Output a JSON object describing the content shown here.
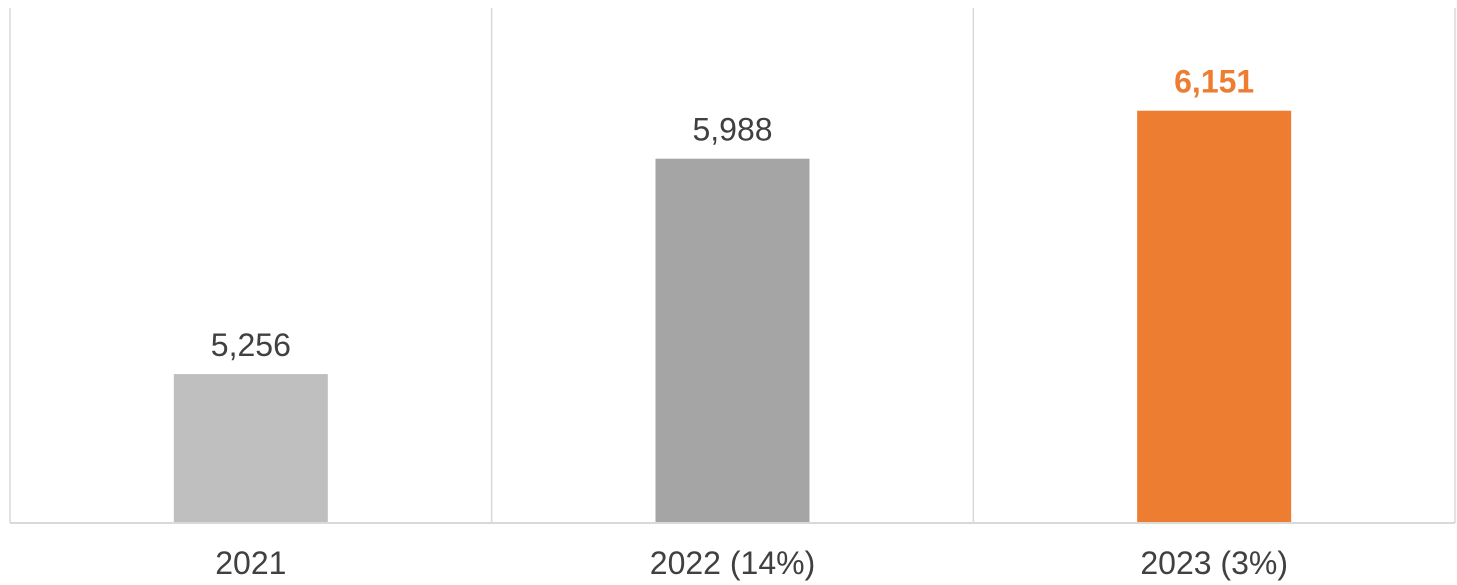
{
  "chart_data": {
    "type": "bar",
    "categories": [
      "2021",
      "2022 (14%)",
      "2023 (3%)"
    ],
    "values": [
      5256,
      5988,
      6151
    ],
    "data_labels": [
      "5,256",
      "5,988",
      "6,151"
    ],
    "colors": [
      "#BFBFBF",
      "#A5A5A5",
      "#ED7D31"
    ],
    "highlight_index": 2,
    "highlight_color": "#ED7D31",
    "label_color": "#404040",
    "axis_color": "#D9D9D9",
    "ylim": [
      4750,
      6500
    ],
    "grid": "vertical separators between categories",
    "legend": "none"
  }
}
